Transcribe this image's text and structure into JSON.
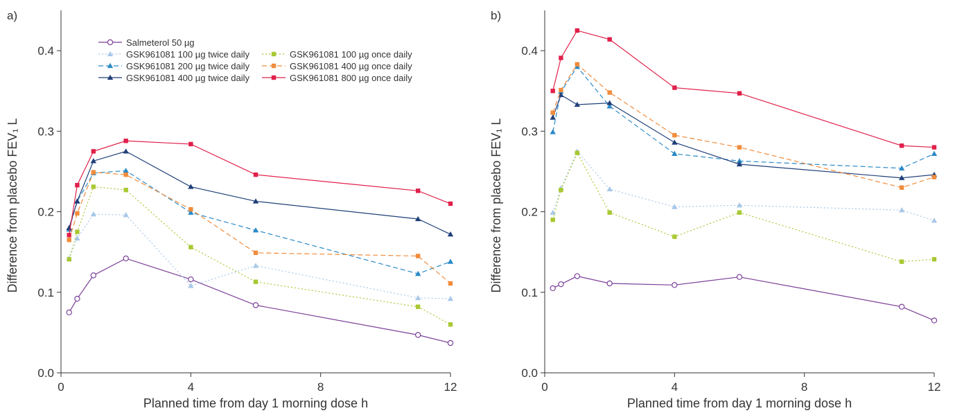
{
  "chart_data": [
    {
      "type": "line",
      "panel_label": "a)",
      "xlabel": "Planned time from day 1 morning dose h",
      "ylabel": "Difference from placebo FEV₁ L",
      "xlim": [
        0,
        12
      ],
      "ylim": [
        0,
        0.45
      ],
      "xticks": [
        "0",
        "4",
        "8",
        "12"
      ],
      "yticks": [
        "0.0",
        "0.1",
        "0.2",
        "0.3",
        "0.4"
      ],
      "grid": false,
      "legend": {
        "placement": "top",
        "columns": [
          [
            "Salmeterol 50 µg",
            "GSK961081 100 µg twice daily",
            "GSK961081 200 µg twice daily",
            "GSK961081 400 µg twice daily"
          ],
          [
            "GSK961081 100 µg once daily",
            "GSK961081 400 µg once daily",
            "GSK961081 800 µg once daily"
          ]
        ]
      },
      "series": [
        {
          "name": "Salmeterol 50 µg",
          "color": "#7b3f98",
          "marker": "circle-open",
          "dash": "solid",
          "x": [
            0.25,
            0.5,
            1,
            2,
            4,
            6,
            11,
            12
          ],
          "y": [
            0.075,
            0.092,
            0.121,
            0.142,
            0.116,
            0.084,
            0.047,
            0.037
          ]
        },
        {
          "name": "GSK961081 100 µg twice daily",
          "color": "#a8c8e8",
          "marker": "triangle",
          "dash": "dotted",
          "x": [
            0.25,
            0.5,
            1,
            2,
            4,
            6,
            11,
            12
          ],
          "y": [
            0.142,
            0.167,
            0.197,
            0.196,
            0.108,
            0.133,
            0.093,
            0.092
          ]
        },
        {
          "name": "GSK961081 200 µg twice daily",
          "color": "#2a8ac8",
          "marker": "triangle",
          "dash": "dashed",
          "x": [
            0.25,
            0.5,
            1,
            2,
            4,
            6,
            11,
            12
          ],
          "y": [
            0.178,
            0.213,
            0.248,
            0.251,
            0.199,
            0.177,
            0.123,
            0.138
          ]
        },
        {
          "name": "GSK961081 400 µg twice daily",
          "color": "#1f3f78",
          "marker": "triangle",
          "dash": "solid",
          "x": [
            0.25,
            0.5,
            1,
            2,
            4,
            6,
            11,
            12
          ],
          "y": [
            0.18,
            0.213,
            0.263,
            0.275,
            0.231,
            0.213,
            0.191,
            0.172
          ]
        },
        {
          "name": "GSK961081 100 µg once daily",
          "color": "#a8c832",
          "marker": "square",
          "dash": "dotted",
          "x": [
            0.25,
            0.5,
            1,
            2,
            4,
            6,
            11,
            12
          ],
          "y": [
            0.141,
            0.175,
            0.231,
            0.227,
            0.156,
            0.113,
            0.082,
            0.06
          ]
        },
        {
          "name": "GSK961081 400 µg once daily",
          "color": "#f08c3c",
          "marker": "square",
          "dash": "dashed",
          "x": [
            0.25,
            0.5,
            1,
            2,
            4,
            6,
            11,
            12
          ],
          "y": [
            0.165,
            0.198,
            0.249,
            0.246,
            0.203,
            0.149,
            0.145,
            0.111
          ]
        },
        {
          "name": "GSK961081 800 µg once daily",
          "color": "#e0204a",
          "marker": "square",
          "dash": "solid",
          "x": [
            0.25,
            0.5,
            1,
            2,
            4,
            6,
            11,
            12
          ],
          "y": [
            0.171,
            0.233,
            0.275,
            0.288,
            0.284,
            0.246,
            0.226,
            0.21
          ]
        }
      ]
    },
    {
      "type": "line",
      "panel_label": "b)",
      "xlabel": "Planned time from day 1 morning dose h",
      "ylabel": "Difference from placebo FEV₁ L",
      "xlim": [
        0,
        12
      ],
      "ylim": [
        0,
        0.45
      ],
      "xticks": [
        "0",
        "4",
        "8",
        "12"
      ],
      "yticks": [
        "0.0",
        "0.1",
        "0.2",
        "0.3",
        "0.4"
      ],
      "grid": false,
      "series": [
        {
          "name": "Salmeterol 50 µg",
          "color": "#7b3f98",
          "marker": "circle-open",
          "dash": "solid",
          "x": [
            0.25,
            0.5,
            1,
            2,
            4,
            6,
            11,
            12
          ],
          "y": [
            0.105,
            0.11,
            0.12,
            0.111,
            0.109,
            0.119,
            0.082,
            0.065
          ]
        },
        {
          "name": "GSK961081 100 µg twice daily",
          "color": "#a8c8e8",
          "marker": "triangle",
          "dash": "dotted",
          "x": [
            0.25,
            0.5,
            1,
            2,
            4,
            6,
            11,
            12
          ],
          "y": [
            0.199,
            0.229,
            0.275,
            0.228,
            0.206,
            0.208,
            0.202,
            0.189
          ]
        },
        {
          "name": "GSK961081 200 µg twice daily",
          "color": "#2a8ac8",
          "marker": "triangle",
          "dash": "dashed",
          "x": [
            0.25,
            0.5,
            1,
            2,
            4,
            6,
            11,
            12
          ],
          "y": [
            0.299,
            0.349,
            0.38,
            0.331,
            0.272,
            0.263,
            0.254,
            0.272
          ]
        },
        {
          "name": "GSK961081 400 µg twice daily",
          "color": "#1f3f78",
          "marker": "triangle",
          "dash": "solid",
          "x": [
            0.25,
            0.5,
            1,
            2,
            4,
            6,
            11,
            12
          ],
          "y": [
            0.317,
            0.345,
            0.333,
            0.335,
            0.286,
            0.259,
            0.242,
            0.246
          ]
        },
        {
          "name": "GSK961081 100 µg once daily",
          "color": "#a8c832",
          "marker": "square",
          "dash": "dotted",
          "x": [
            0.25,
            0.5,
            1,
            2,
            4,
            6,
            11,
            12
          ],
          "y": [
            0.19,
            0.227,
            0.273,
            0.199,
            0.169,
            0.199,
            0.138,
            0.141
          ]
        },
        {
          "name": "GSK961081 400 µg once daily",
          "color": "#f08c3c",
          "marker": "square",
          "dash": "dashed",
          "x": [
            0.25,
            0.5,
            1,
            2,
            4,
            6,
            11,
            12
          ],
          "y": [
            0.323,
            0.351,
            0.383,
            0.348,
            0.295,
            0.28,
            0.23,
            0.243
          ]
        },
        {
          "name": "GSK961081 800 µg once daily",
          "color": "#e0204a",
          "marker": "square",
          "dash": "solid",
          "x": [
            0.25,
            0.5,
            1,
            2,
            4,
            6,
            11,
            12
          ],
          "y": [
            0.35,
            0.391,
            0.425,
            0.414,
            0.354,
            0.347,
            0.282,
            0.28
          ]
        }
      ]
    }
  ]
}
